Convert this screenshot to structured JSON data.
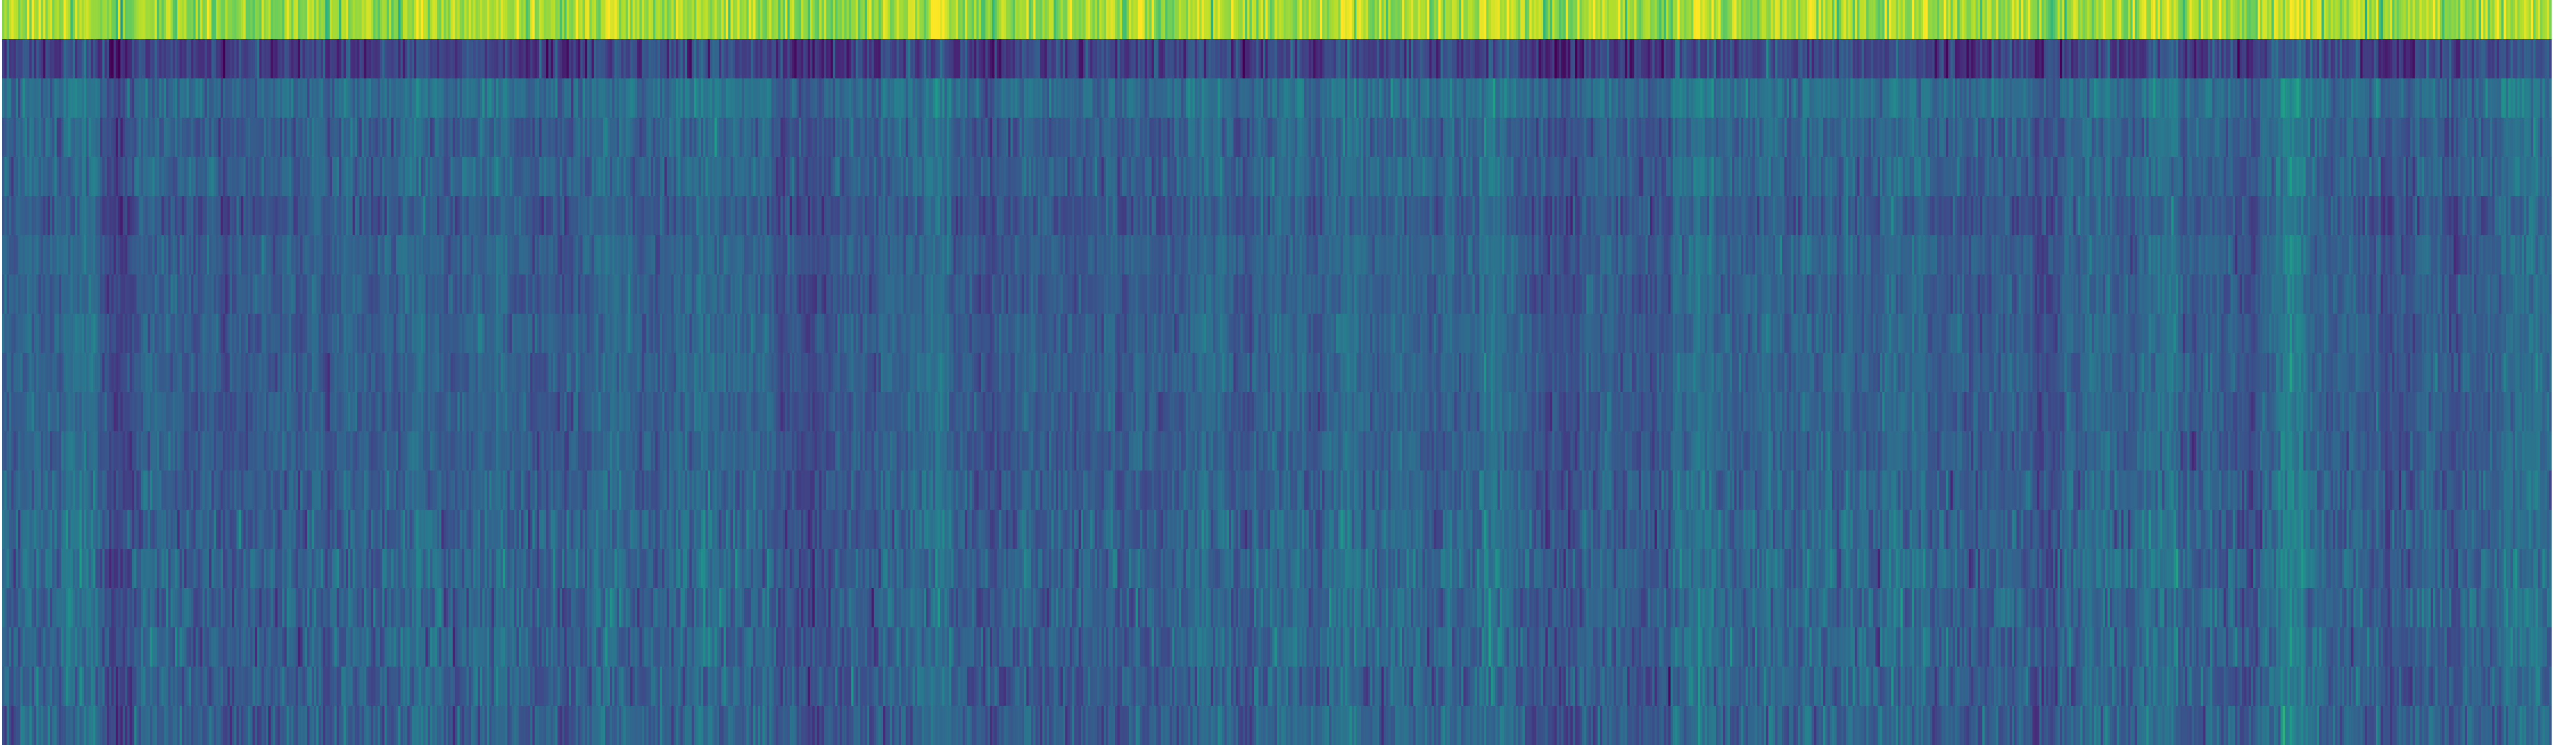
{
  "chart_data": {
    "type": "heatmap",
    "title": "",
    "xlabel": "",
    "ylabel": "",
    "axes_visible": false,
    "colorbar_visible": false,
    "colormap": "viridis",
    "value_range": [
      0,
      1
    ],
    "n_rows": 19,
    "n_cols": 1120,
    "row_means": [
      0.86,
      0.2,
      0.36,
      0.31,
      0.32,
      0.28,
      0.31,
      0.3,
      0.31,
      0.31,
      0.3,
      0.3,
      0.31,
      0.32,
      0.33,
      0.32,
      0.32,
      0.31,
      0.31
    ],
    "row_spread": [
      0.07,
      0.07,
      0.05,
      0.05,
      0.05,
      0.05,
      0.04,
      0.04,
      0.04,
      0.04,
      0.04,
      0.04,
      0.05,
      0.06,
      0.06,
      0.06,
      0.06,
      0.06,
      0.06
    ],
    "seed": 20240611,
    "palette": {
      "background": "#ffffff",
      "viridis_stops": [
        "#440154",
        "#482878",
        "#3e4989",
        "#31688e",
        "#26828e",
        "#1f9e89",
        "#35b779",
        "#6ece58",
        "#b5de2b",
        "#fde725"
      ]
    }
  }
}
